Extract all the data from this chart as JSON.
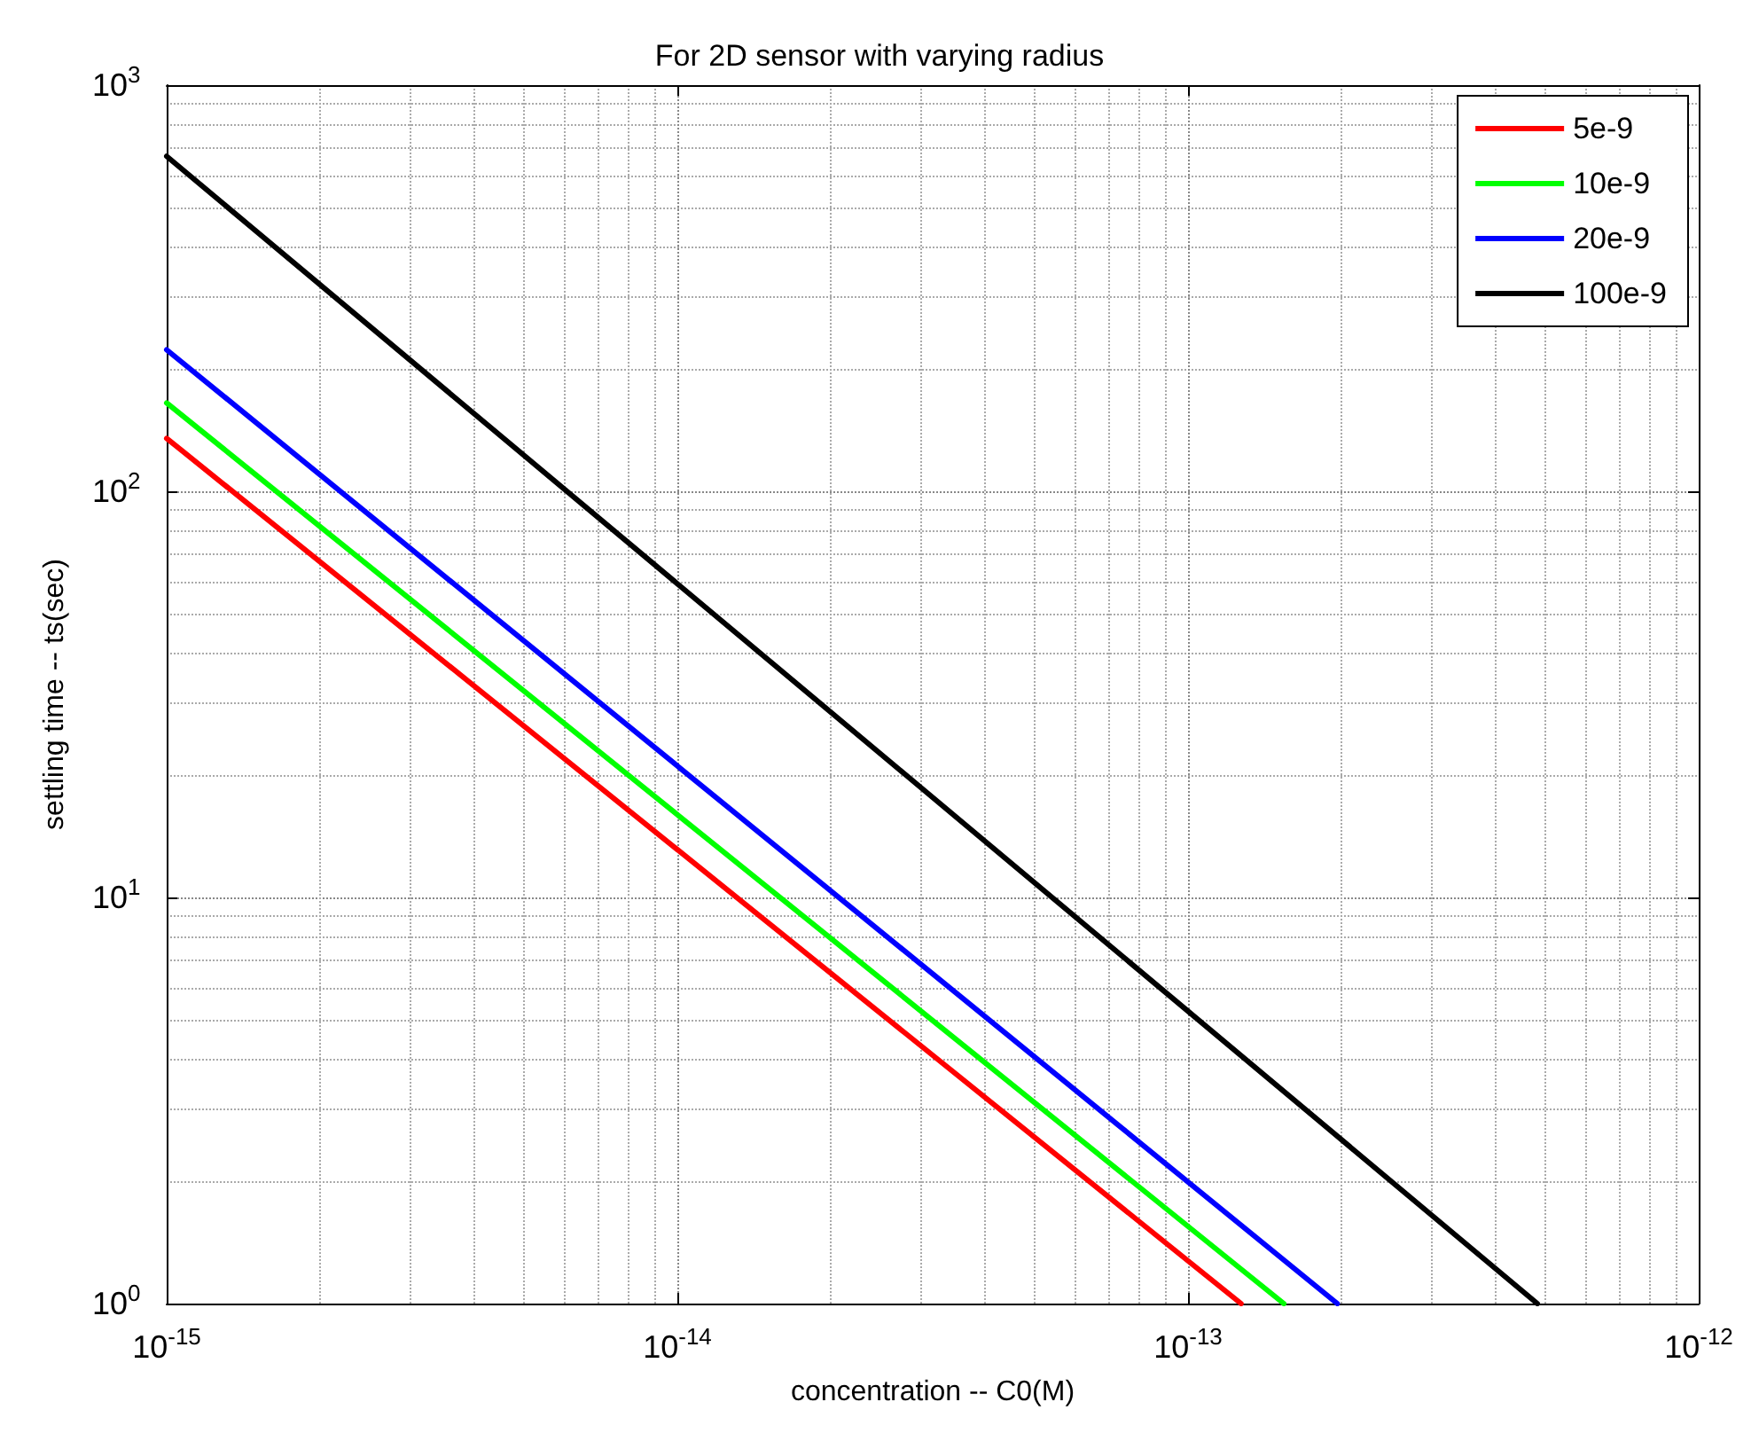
{
  "chart_data": {
    "type": "line",
    "title": "For 2D sensor with varying radius",
    "xlabel": "concentration -- C0(M)",
    "ylabel": "settling time -- ts(sec)",
    "log": "xy",
    "grid": true,
    "legend": "top right",
    "marker": "none",
    "line_style": "solid",
    "xlim": [
      1e-15,
      1e-12
    ],
    "ylim": [
      1,
      1000
    ],
    "xticks": [
      {
        "value": 1e-15,
        "label": "10$^{-15}$"
      },
      {
        "value": 1e-14,
        "label": "10$^{-14}$"
      },
      {
        "value": 1e-13,
        "label": "10$^{-13}$"
      },
      {
        "value": 1e-12,
        "label": "10$^{-12}$"
      }
    ],
    "yticks": [
      {
        "value": 1,
        "label": "10$^{0}$"
      },
      {
        "value": 10,
        "label": "10$^{1}$"
      },
      {
        "value": 100,
        "label": "10$^{2}$"
      },
      {
        "value": 1000,
        "label": "10$^{3}$"
      }
    ],
    "series": [
      {
        "name": "5e-9",
        "color": "#ff0000",
        "x": [
          1e-15,
          1.27e-13
        ],
        "values": [
          135,
          1
        ]
      },
      {
        "name": "10e-9",
        "color": "#00ff00",
        "x": [
          1e-15,
          1.54e-13
        ],
        "values": [
          165,
          1
        ]
      },
      {
        "name": "20e-9",
        "color": "#0000ff",
        "x": [
          1e-15,
          1.96e-13
        ],
        "values": [
          223,
          1
        ]
      },
      {
        "name": "100e-9",
        "color": "#000000",
        "x": [
          1e-15,
          4.83e-13
        ],
        "values": [
          668,
          1
        ]
      }
    ]
  }
}
